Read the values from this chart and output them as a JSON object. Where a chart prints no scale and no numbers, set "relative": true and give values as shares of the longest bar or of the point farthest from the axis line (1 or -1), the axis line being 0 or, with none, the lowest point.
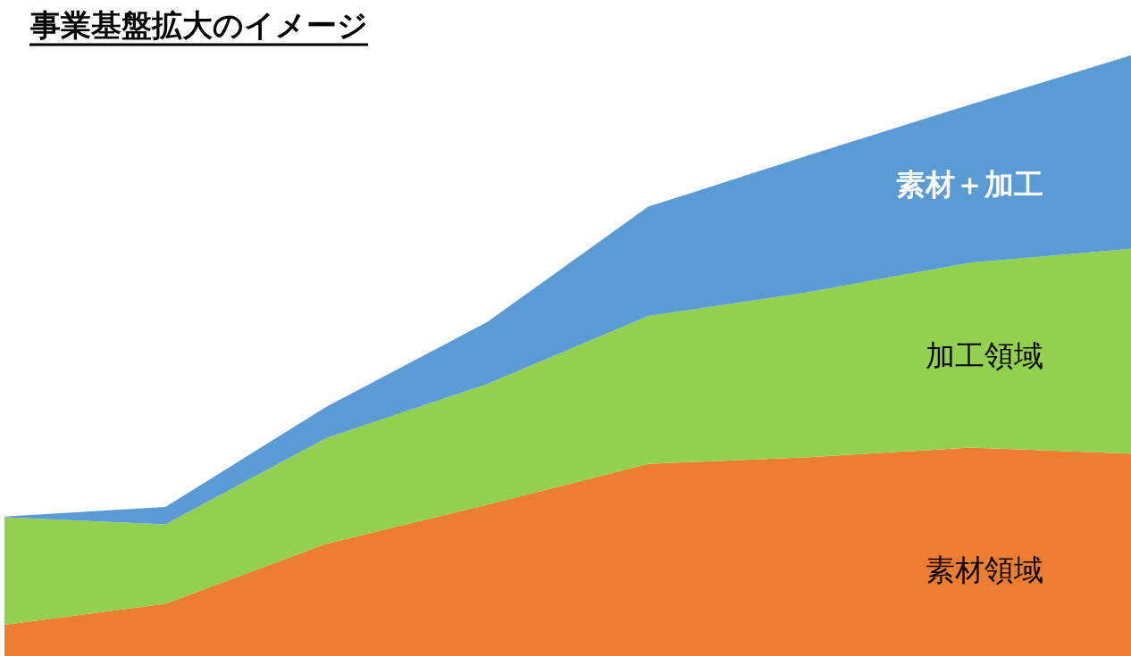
{
  "chart_data": {
    "type": "area",
    "title": "事業基盤拡大のイメージ",
    "relative": true,
    "stacked": true,
    "categories": [
      null,
      null,
      null,
      null,
      null,
      null,
      null,
      null
    ],
    "series": [
      {
        "name": "素材領域",
        "color": "#ed7d31",
        "values": [
          0.052,
          0.087,
          0.187,
          0.252,
          0.32,
          0.331,
          0.347,
          0.337
        ]
      },
      {
        "name": "加工領域",
        "color": "#92d050",
        "values": [
          0.179,
          0.132,
          0.176,
          0.201,
          0.246,
          0.275,
          0.308,
          0.341
        ]
      },
      {
        "name": "素材＋加工",
        "color": "#5b9bd5",
        "values": [
          0.001,
          0.029,
          0.052,
          0.103,
          0.182,
          0.228,
          0.263,
          0.322
        ]
      }
    ]
  }
}
